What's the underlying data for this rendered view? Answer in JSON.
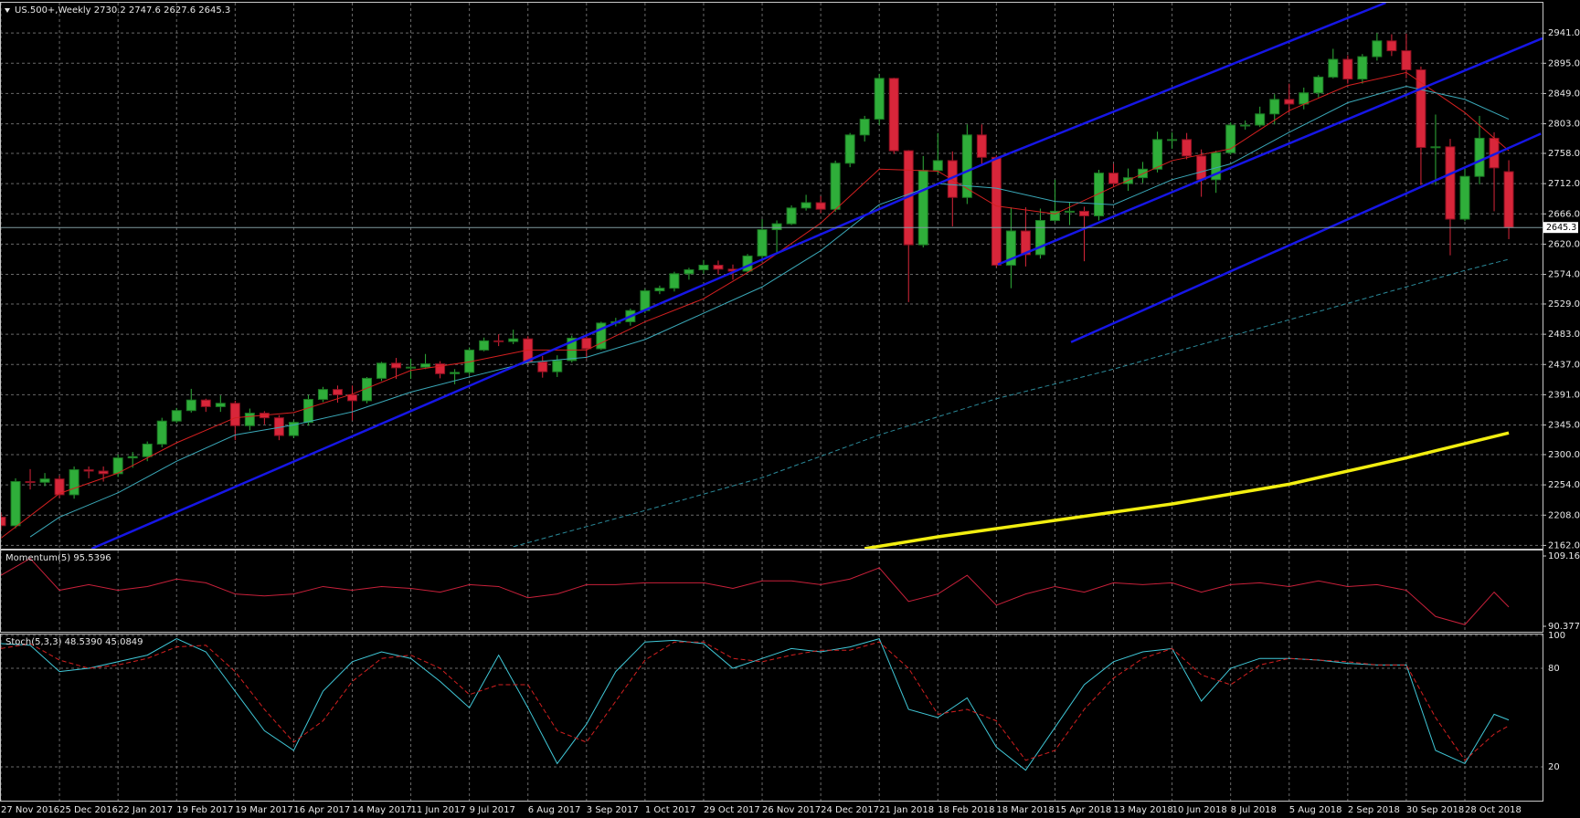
{
  "chart_data": [
    {
      "type": "candlestick",
      "title": "US.500+,Weekly  2730.2 2747.6 2627.6 2645.3",
      "categories": [
        "27 Nov 2016",
        null,
        null,
        null,
        "25 Dec 2016",
        null,
        null,
        null,
        "22 Jan 2017",
        null,
        null,
        null,
        "19 Feb 2017",
        null,
        null,
        null,
        "19 Mar 2017",
        null,
        null,
        null,
        "16 Apr 2017",
        null,
        null,
        null,
        "14 May 2017",
        null,
        null,
        null,
        "11 Jun 2017",
        null,
        null,
        null,
        "9 Jul 2017",
        null,
        null,
        null,
        "6 Aug 2017",
        null,
        null,
        null,
        "3 Sep 2017",
        null,
        null,
        null,
        "1 Oct 2017",
        null,
        null,
        null,
        "29 Oct 2017",
        null,
        null,
        null,
        "26 Nov 2017",
        null,
        null,
        null,
        "24 Dec 2017",
        null,
        null,
        null,
        "21 Jan 2018",
        null,
        null,
        null,
        "18 Feb 2018",
        null,
        null,
        null,
        "18 Mar 2018",
        null,
        null,
        null,
        "15 Apr 2018",
        null,
        null,
        null,
        "13 May 2018",
        null,
        null,
        null,
        "10 Jun 2018",
        null,
        null,
        null,
        "8 Jul 2018",
        null,
        null,
        null,
        "5 Aug 2018",
        null,
        null,
        null,
        "2 Sep 2018",
        null,
        null,
        null,
        "30 Sep 2018",
        null,
        null,
        null,
        "28 Oct 2018",
        null,
        null,
        null
      ],
      "open": [
        2205,
        2192,
        2259,
        2258,
        2263,
        2239,
        2277,
        2275,
        2271,
        2295,
        2297,
        2316,
        2351,
        2367,
        2383,
        2373,
        2378,
        2344,
        2363,
        2356,
        2329,
        2349,
        2384,
        2399,
        2391,
        2382,
        2416,
        2439,
        2432,
        2433,
        2438,
        2423,
        2425,
        2459,
        2473,
        2472,
        2476,
        2441,
        2426,
        2443,
        2477,
        2461,
        2500,
        2502,
        2519,
        2549,
        2553,
        2575,
        2581,
        2588,
        2582,
        2579,
        2602,
        2642,
        2651,
        2675,
        2683,
        2673,
        2743,
        2786,
        2810,
        2872,
        2762,
        2619,
        2732,
        2747,
        2691,
        2786,
        2752,
        2588,
        2640,
        2604,
        2656,
        2670,
        2670,
        2663,
        2728,
        2712,
        2721,
        2734,
        2779,
        2779,
        2754,
        2718,
        2759,
        2801,
        2801,
        2818,
        2840,
        2833,
        2850,
        2874,
        2901,
        2871,
        2905,
        2929,
        2914,
        2885,
        2767,
        2768,
        2658,
        2723,
        2781,
        2730.2
      ],
      "high": [
        2212,
        2264,
        2278,
        2272,
        2268,
        2282,
        2282,
        2282,
        2300,
        2304,
        2320,
        2356,
        2371,
        2400,
        2385,
        2390,
        2382,
        2370,
        2366,
        2360,
        2352,
        2391,
        2403,
        2405,
        2405,
        2418,
        2441,
        2447,
        2446,
        2453,
        2442,
        2430,
        2463,
        2478,
        2483,
        2490,
        2480,
        2450,
        2451,
        2481,
        2482,
        2502,
        2508,
        2522,
        2552,
        2557,
        2578,
        2584,
        2596,
        2595,
        2589,
        2605,
        2658,
        2656,
        2679,
        2695,
        2693,
        2747,
        2789,
        2815,
        2879,
        2873,
        2763,
        2754,
        2789,
        2761,
        2802,
        2802,
        2755,
        2676,
        2676,
        2674,
        2718,
        2683,
        2677,
        2733,
        2742,
        2735,
        2745,
        2791,
        2790,
        2789,
        2764,
        2762,
        2805,
        2808,
        2829,
        2848,
        2864,
        2858,
        2877,
        2917,
        2907,
        2909,
        2941,
        2939,
        2940,
        2890,
        2817,
        2780,
        2737,
        2815,
        2790,
        2747.6
      ],
      "low": [
        2185,
        2188,
        2247,
        2252,
        2234,
        2233,
        2264,
        2259,
        2266,
        2280,
        2290,
        2311,
        2348,
        2364,
        2365,
        2365,
        2322,
        2337,
        2346,
        2322,
        2325,
        2344,
        2380,
        2379,
        2352,
        2378,
        2412,
        2415,
        2415,
        2430,
        2416,
        2407,
        2421,
        2457,
        2465,
        2468,
        2437,
        2417,
        2418,
        2440,
        2446,
        2459,
        2495,
        2496,
        2515,
        2544,
        2548,
        2566,
        2575,
        2574,
        2566,
        2576,
        2597,
        2605,
        2649,
        2671,
        2667,
        2669,
        2737,
        2776,
        2801,
        2757,
        2532,
        2615,
        2727,
        2647,
        2681,
        2739,
        2585,
        2553,
        2586,
        2598,
        2653,
        2649,
        2594,
        2656,
        2707,
        2701,
        2713,
        2729,
        2765,
        2749,
        2692,
        2698,
        2756,
        2794,
        2798,
        2802,
        2820,
        2825,
        2843,
        2872,
        2864,
        2864,
        2899,
        2906,
        2872,
        2710,
        2710,
        2603,
        2655,
        2711,
        2670,
        2627.6
      ],
      "close": [
        2192,
        2259,
        2258,
        2263,
        2239,
        2277,
        2275,
        2271,
        2295,
        2297,
        2316,
        2351,
        2367,
        2383,
        2373,
        2378,
        2344,
        2363,
        2356,
        2329,
        2349,
        2384,
        2399,
        2391,
        2382,
        2416,
        2439,
        2432,
        2433,
        2438,
        2423,
        2425,
        2459,
        2473,
        2472,
        2476,
        2441,
        2426,
        2443,
        2477,
        2461,
        2500,
        2502,
        2519,
        2549,
        2553,
        2575,
        2581,
        2588,
        2582,
        2579,
        2602,
        2642,
        2651,
        2675,
        2683,
        2673,
        2743,
        2786,
        2810,
        2872,
        2762,
        2619,
        2732,
        2747,
        2691,
        2786,
        2752,
        2588,
        2640,
        2604,
        2656,
        2670,
        2670,
        2663,
        2728,
        2712,
        2721,
        2734,
        2779,
        2779,
        2754,
        2718,
        2759,
        2801,
        2801,
        2818,
        2840,
        2833,
        2850,
        2874,
        2901,
        2871,
        2905,
        2929,
        2914,
        2885,
        2767,
        2768,
        2658,
        2723,
        2781,
        2736,
        2645.3
      ],
      "up_color": "#2fae3a",
      "down_color": "#d8263a",
      "ylim": [
        2157,
        2987
      ],
      "yticks": [
        {
          "value": 2941,
          "label": "2941.0"
        },
        {
          "value": 2895,
          "label": "2895.0"
        },
        {
          "value": 2849,
          "label": "2849.0"
        },
        {
          "value": 2803,
          "label": "2803.0"
        },
        {
          "value": 2758,
          "label": "2758.0"
        },
        {
          "value": 2712,
          "label": "2712.0"
        },
        {
          "value": 2666,
          "label": "2666.0"
        },
        {
          "value": 2620,
          "label": "2620.0"
        },
        {
          "value": 2574,
          "label": "2574.0"
        },
        {
          "value": 2529,
          "label": "2529.0"
        },
        {
          "value": 2483,
          "label": "2483.0"
        },
        {
          "value": 2437,
          "label": "2437.0"
        },
        {
          "value": 2391,
          "label": "2391.0"
        },
        {
          "value": 2345,
          "label": "2345.0"
        },
        {
          "value": 2300,
          "label": "2300.0"
        },
        {
          "value": 2254,
          "label": "2254.0"
        },
        {
          "value": 2208,
          "label": "2208.0"
        },
        {
          "value": 2162,
          "label": "2162.0"
        }
      ],
      "grid": true,
      "series": [
        {
          "color": "#d42020",
          "style": "solid",
          "x": [
            0,
            4,
            8,
            12,
            16,
            20,
            24,
            28,
            32,
            36,
            40,
            44,
            48,
            52,
            56,
            60,
            64,
            68,
            72,
            76,
            80,
            84,
            88,
            92,
            96,
            100,
            103
          ],
          "values": [
            2173,
            2241,
            2272,
            2318,
            2356,
            2364,
            2392,
            2428,
            2441,
            2459,
            2459,
            2502,
            2537,
            2590,
            2652,
            2734,
            2731,
            2678,
            2666,
            2707,
            2747,
            2765,
            2823,
            2861,
            2881,
            2820,
            2762
          ]
        },
        {
          "color": "#3aa8b8",
          "style": "solid",
          "x": [
            2,
            4,
            8,
            12,
            16,
            20,
            24,
            28,
            32,
            36,
            40,
            44,
            48,
            52,
            56,
            60,
            64,
            68,
            72,
            76,
            80,
            84,
            88,
            92,
            96,
            100,
            103
          ],
          "values": [
            2175,
            2205,
            2242,
            2290,
            2330,
            2345,
            2365,
            2395,
            2418,
            2440,
            2448,
            2475,
            2515,
            2555,
            2610,
            2680,
            2712,
            2705,
            2685,
            2680,
            2718,
            2742,
            2790,
            2835,
            2860,
            2840,
            2810
          ]
        },
        {
          "color": "#2b8a9a",
          "style": "dashed",
          "x": [
            35,
            44,
            52,
            60,
            68,
            76,
            84,
            92,
            100,
            103
          ],
          "values": [
            2160,
            2215,
            2265,
            2330,
            2385,
            2430,
            2480,
            2530,
            2580,
            2597
          ]
        },
        {
          "color": "#f2ee10",
          "style": "thick",
          "x": [
            59,
            64,
            72,
            80,
            88,
            96,
            103
          ],
          "values": [
            2157,
            2175,
            2200,
            2225,
            2255,
            2295,
            2333
          ]
        }
      ],
      "trend_lines": [
        {
          "color": "#1616e6",
          "x": [
            6.2,
            68.1
          ],
          "values": [
            2157,
            2751
          ]
        },
        {
          "color": "#1616e6",
          "x": [
            68.1,
            94.6
          ],
          "values": [
            2751,
            2987
          ]
        },
        {
          "color": "#1616e6",
          "x": [
            68.1,
            105.3
          ],
          "values": [
            2589,
            2933
          ]
        },
        {
          "color": "#1616e6",
          "x": [
            73.1,
            105.2
          ],
          "values": [
            2471,
            2788
          ]
        }
      ]
    },
    {
      "type": "line",
      "title": "Momentum(5) 95.5396",
      "x": [
        0,
        2,
        4,
        6,
        8,
        10,
        12,
        14,
        16,
        18,
        20,
        22,
        24,
        26,
        28,
        30,
        32,
        34,
        36,
        38,
        40,
        42,
        44,
        46,
        48,
        50,
        52,
        54,
        56,
        58,
        60,
        62,
        64,
        66,
        68,
        70,
        72,
        74,
        76,
        78,
        80,
        82,
        84,
        86,
        88,
        90,
        92,
        94,
        96,
        98,
        100,
        102,
        103
      ],
      "ylim": [
        90.3775,
        109.1611
      ],
      "yticks": [
        109.1611,
        90.3775
      ],
      "series": [
        {
          "color": "#c8203a",
          "style": "solid",
          "values": [
            104,
            108.5,
            100,
            101.5,
            100,
            101,
            103,
            102,
            99,
            98.5,
            99,
            101,
            100,
            101,
            100.5,
            99.5,
            101.5,
            101,
            98,
            99,
            101.5,
            101.5,
            102,
            102,
            102,
            100.5,
            102.5,
            102.5,
            101.5,
            103,
            106,
            97,
            99,
            104,
            96,
            99,
            101,
            99.5,
            102,
            101.5,
            102,
            99.5,
            101.5,
            102,
            101,
            102.5,
            101,
            101.5,
            100,
            93,
            90.8,
            99.5,
            95.5396
          ]
        }
      ]
    },
    {
      "type": "line",
      "title": "Stoch(5,3,3) 48.5390 45.0849",
      "x": [
        0,
        2,
        4,
        6,
        8,
        10,
        12,
        14,
        16,
        18,
        20,
        22,
        24,
        26,
        28,
        30,
        32,
        34,
        36,
        38,
        40,
        42,
        44,
        46,
        48,
        50,
        52,
        54,
        56,
        58,
        60,
        62,
        64,
        66,
        68,
        70,
        72,
        74,
        76,
        78,
        80,
        82,
        84,
        86,
        88,
        90,
        92,
        94,
        96,
        98,
        100,
        102,
        103
      ],
      "ylim": [
        0,
        100
      ],
      "yticks": [
        100,
        80,
        20
      ],
      "series": [
        {
          "color": "#40c8d8",
          "style": "solid",
          "values": [
            95,
            94,
            78,
            80,
            84,
            88,
            98,
            90,
            66,
            42,
            30,
            66,
            84,
            90,
            86,
            72,
            56,
            88,
            56,
            22,
            46,
            78,
            96,
            97,
            95,
            80,
            86,
            92,
            90,
            93,
            98,
            55,
            50,
            62,
            32,
            18,
            44,
            70,
            84,
            90,
            92,
            60,
            80,
            86,
            86,
            85,
            83,
            82,
            82,
            30,
            22,
            52,
            48.539
          ]
        },
        {
          "color": "#d42020",
          "style": "dashed",
          "values": [
            92,
            95,
            85,
            80,
            82,
            86,
            93,
            94,
            78,
            55,
            35,
            48,
            72,
            86,
            88,
            80,
            64,
            70,
            70,
            42,
            35,
            60,
            85,
            96,
            96,
            86,
            84,
            88,
            91,
            91,
            96,
            80,
            52,
            55,
            48,
            24,
            30,
            55,
            74,
            86,
            92,
            76,
            70,
            82,
            86,
            85,
            84,
            82,
            82,
            50,
            24,
            40,
            45.0849
          ]
        }
      ]
    }
  ]
}
